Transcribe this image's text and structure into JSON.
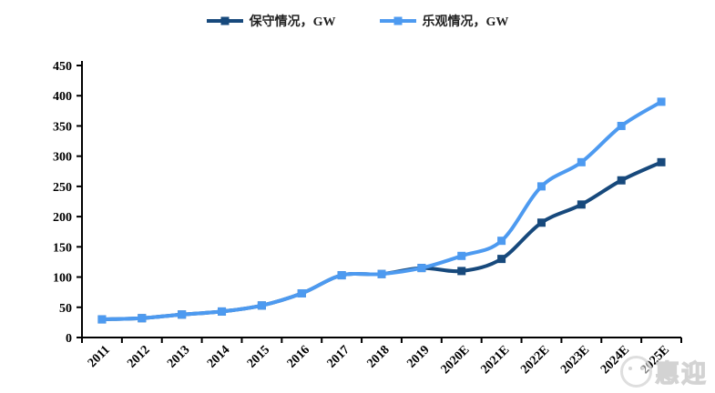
{
  "legend": {
    "items": [
      {
        "label": "保守情况，GW",
        "color": "#17497C"
      },
      {
        "label": "乐观情况，GW",
        "color": "#4D9AF0"
      }
    ]
  },
  "watermark": {
    "text": "惠迎"
  },
  "axis_color": "#000000",
  "chart_data": {
    "type": "line",
    "title": "",
    "xlabel": "",
    "ylabel": "",
    "categories": [
      "2011",
      "2012",
      "2013",
      "2014",
      "2015",
      "2016",
      "2017",
      "2018",
      "2019",
      "2020E",
      "2021E",
      "2022E",
      "2023E",
      "2024E",
      "2025E"
    ],
    "series": [
      {
        "name": "保守情况，GW",
        "color": "#17497C",
        "values": [
          30,
          32,
          38,
          43,
          53,
          73,
          103,
          105,
          115,
          110,
          130,
          190,
          220,
          260,
          290
        ]
      },
      {
        "name": "乐观情况，GW",
        "color": "#4D9AF0",
        "values": [
          30,
          32,
          38,
          43,
          53,
          73,
          103,
          105,
          115,
          135,
          160,
          250,
          290,
          350,
          390
        ]
      }
    ],
    "ylim": [
      0,
      450
    ],
    "ytick_step": 50,
    "yticks": [
      0,
      50,
      100,
      150,
      200,
      250,
      300,
      350,
      400,
      450
    ],
    "grid": false,
    "legend_position": "top",
    "smooth": true,
    "marker": "square"
  }
}
